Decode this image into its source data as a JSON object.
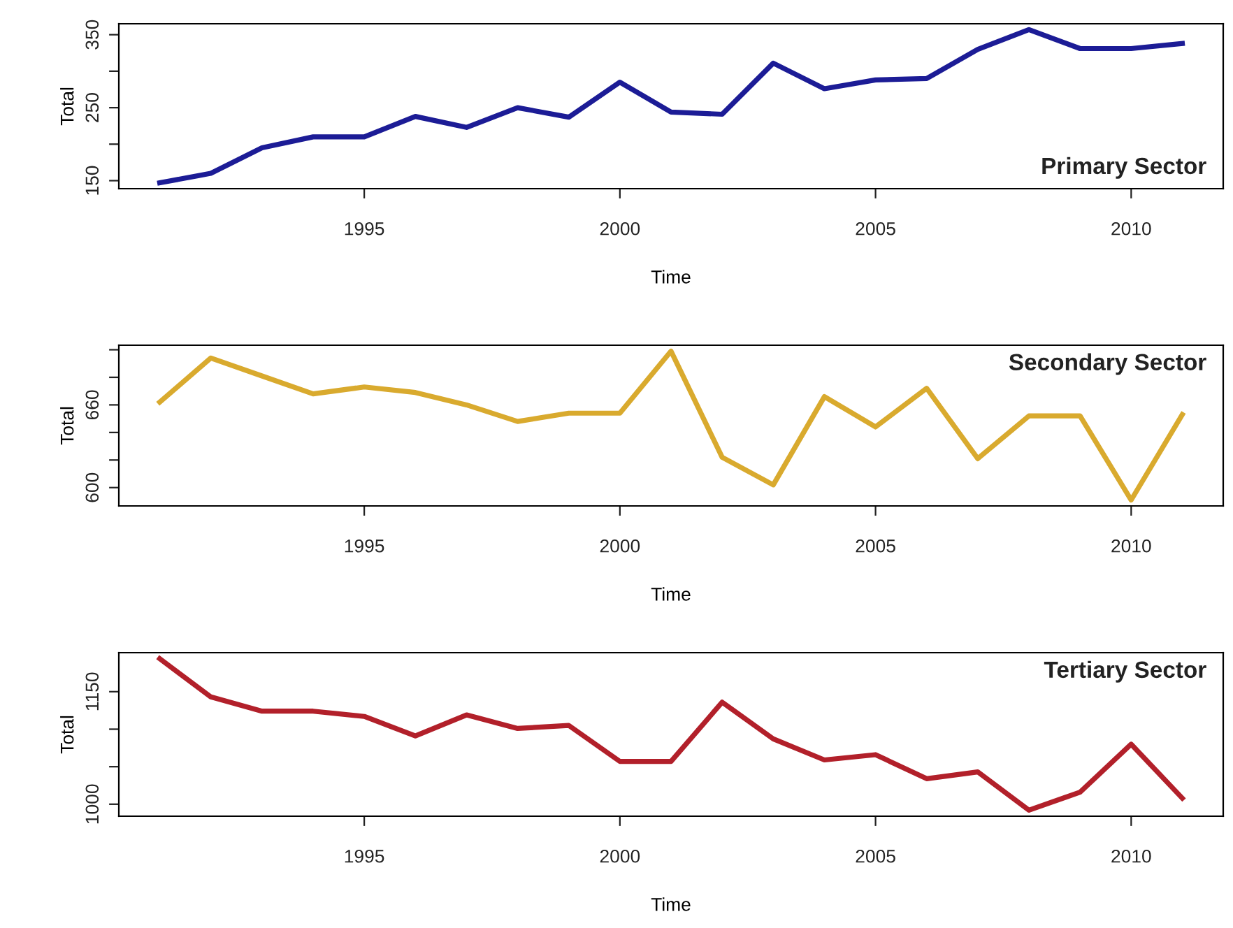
{
  "chart_data": [
    {
      "type": "line",
      "title": "Primary Sector",
      "xlabel": "Time",
      "ylabel": "Total",
      "x": [
        1991,
        1992,
        1993,
        1994,
        1995,
        1996,
        1997,
        1998,
        1999,
        2000,
        2001,
        2002,
        2003,
        2004,
        2005,
        2006,
        2007,
        2008,
        2009,
        2010,
        2011
      ],
      "series": [
        {
          "color": "#1c1c96",
          "values": [
            147,
            160,
            195,
            210,
            210,
            238,
            223,
            250,
            237,
            285,
            244,
            241,
            311,
            276,
            288,
            290,
            330,
            357,
            331,
            331,
            338
          ]
        }
      ],
      "xlim": [
        1990.2,
        2011.8
      ],
      "xticks": [
        1995,
        2000,
        2005,
        2010
      ],
      "ylim": [
        139,
        365
      ],
      "yticks": [
        150,
        {
          "value": 200,
          "label": null
        },
        250,
        {
          "value": 300,
          "label": null
        },
        350
      ],
      "grid": false,
      "legend": false
    },
    {
      "type": "line",
      "title": "Secondary Sector",
      "xlabel": "Time",
      "ylabel": "Total",
      "x": [
        1991,
        1992,
        1993,
        1994,
        1995,
        1996,
        1997,
        1998,
        1999,
        2000,
        2001,
        2002,
        2003,
        2004,
        2005,
        2006,
        2007,
        2008,
        2009,
        2010,
        2011
      ],
      "series": [
        {
          "color": "#d9aa2e",
          "values": [
            662,
            694,
            681,
            668,
            673,
            669,
            660,
            648,
            654,
            654,
            699,
            622,
            602,
            666,
            644,
            672,
            621,
            652,
            652,
            591,
            653
          ]
        }
      ],
      "xlim": [
        1990.2,
        2011.8
      ],
      "xticks": [
        1995,
        2000,
        2005,
        2010
      ],
      "ylim": [
        586.7,
        703.3
      ],
      "yticks": [
        600,
        {
          "value": 620,
          "label": null
        },
        {
          "value": 640,
          "label": null
        },
        660,
        {
          "value": 680,
          "label": null
        },
        {
          "value": 700,
          "label": null
        }
      ],
      "grid": false,
      "legend": false
    },
    {
      "type": "line",
      "title": "Tertiary Sector",
      "xlabel": "Time",
      "ylabel": "Total",
      "x": [
        1991,
        1992,
        1993,
        1994,
        1995,
        1996,
        1997,
        1998,
        1999,
        2000,
        2001,
        2002,
        2003,
        2004,
        2005,
        2006,
        2007,
        2008,
        2009,
        2010,
        2011
      ],
      "series": [
        {
          "color": "#b2202a",
          "values": [
            1194,
            1143,
            1124,
            1124,
            1117,
            1091,
            1119,
            1101,
            1105,
            1057,
            1057,
            1136,
            1087,
            1059,
            1066,
            1034,
            1043,
            992,
            1016,
            1080,
            1008
          ]
        }
      ],
      "xlim": [
        1990.2,
        2011.8
      ],
      "xticks": [
        1995,
        2000,
        2005,
        2010
      ],
      "ylim": [
        984,
        1202
      ],
      "yticks": [
        1000,
        {
          "value": 1050,
          "label": null
        },
        {
          "value": 1100,
          "label": null
        },
        1150
      ],
      "grid": false,
      "legend": false
    }
  ]
}
